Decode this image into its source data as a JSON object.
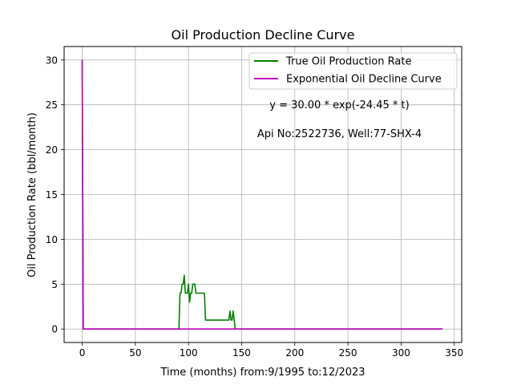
{
  "chart_data": {
    "type": "line",
    "title": "Oil Production Decline Curve",
    "xlabel": "Time (months) from:9/1995 to:12/2023",
    "ylabel": "Oil Production Rate (bbl/month)",
    "xlim": [
      -17,
      357
    ],
    "ylim": [
      -1.5,
      31.5
    ],
    "xticks": [
      0,
      50,
      100,
      150,
      200,
      250,
      300,
      350
    ],
    "xtick_labels": [
      "0",
      "50",
      "100",
      "150",
      "200",
      "250",
      "300",
      "350"
    ],
    "yticks": [
      0,
      5,
      10,
      15,
      20,
      25,
      30
    ],
    "ytick_labels": [
      "0",
      "5",
      "10",
      "15",
      "20",
      "25",
      "30"
    ],
    "grid": true,
    "legend_position": "upper right",
    "annotations": [
      {
        "text": "y = 30.00 * exp(-24.45 * t)",
        "x": 242,
        "y": 24.6
      },
      {
        "text": "Api No:2522736, Well:77-SHX-4",
        "x": 242,
        "y": 21.4
      }
    ],
    "series": [
      {
        "name": "True Oil Production Rate",
        "color": "#008000",
        "points": [
          [
            0,
            30
          ],
          [
            1,
            0
          ],
          [
            91,
            0
          ],
          [
            92,
            4
          ],
          [
            93,
            4
          ],
          [
            94,
            5
          ],
          [
            95,
            5
          ],
          [
            96,
            6
          ],
          [
            97,
            4
          ],
          [
            99,
            4
          ],
          [
            100,
            5
          ],
          [
            101,
            3
          ],
          [
            102,
            4
          ],
          [
            103,
            4
          ],
          [
            104,
            5
          ],
          [
            106,
            5
          ],
          [
            107,
            4
          ],
          [
            115,
            4
          ],
          [
            116,
            1
          ],
          [
            138,
            1
          ],
          [
            139,
            2
          ],
          [
            140,
            1
          ],
          [
            141,
            1
          ],
          [
            142,
            2
          ],
          [
            143,
            1
          ],
          [
            144,
            0
          ],
          [
            339,
            0
          ]
        ]
      },
      {
        "name": "Exponential Oil Decline Curve",
        "color": "#bf00bf",
        "points": [
          [
            0,
            30
          ],
          [
            1,
            0
          ],
          [
            339,
            0
          ]
        ]
      }
    ]
  }
}
